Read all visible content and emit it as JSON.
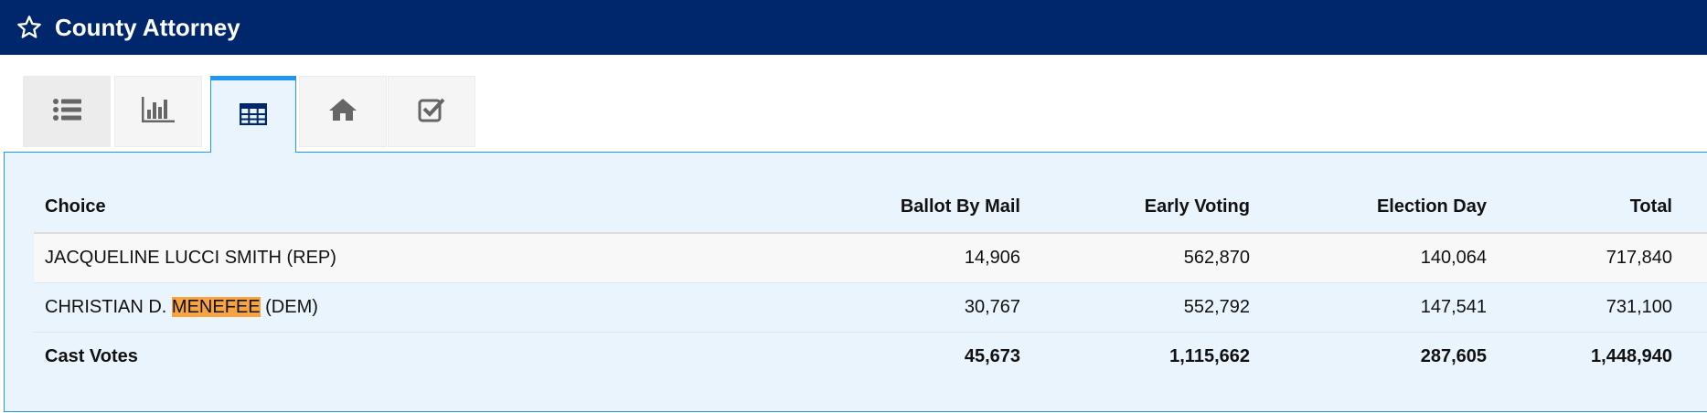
{
  "header": {
    "title": "County Attorney",
    "icon": "star-outline-icon",
    "bg_color": "#00266b"
  },
  "tabs": [
    {
      "icon": "list-icon",
      "active": false
    },
    {
      "icon": "bar-chart-icon",
      "active": false
    },
    {
      "icon": "table-icon",
      "active": true
    },
    {
      "icon": "home-icon",
      "active": false
    },
    {
      "icon": "checkbox-icon",
      "active": false
    }
  ],
  "accent_color": "#2196f3",
  "table": {
    "columns": [
      "Choice",
      "Ballot By Mail",
      "Early Voting",
      "Election Day",
      "Total"
    ],
    "rows": [
      {
        "choice": "JACQUELINE LUCCI SMITH (REP)",
        "ballot_by_mail": "14,906",
        "early_voting": "562,870",
        "election_day": "140,064",
        "total": "717,840"
      },
      {
        "choice_before": "CHRISTIAN D. ",
        "choice_highlight": "MENEFEE",
        "choice_after": " (DEM)",
        "ballot_by_mail": "30,767",
        "early_voting": "552,792",
        "election_day": "147,541",
        "total": "731,100"
      }
    ],
    "total_row": {
      "label": "Cast Votes",
      "ballot_by_mail": "45,673",
      "early_voting": "1,115,662",
      "election_day": "287,605",
      "total": "1,448,940"
    }
  }
}
